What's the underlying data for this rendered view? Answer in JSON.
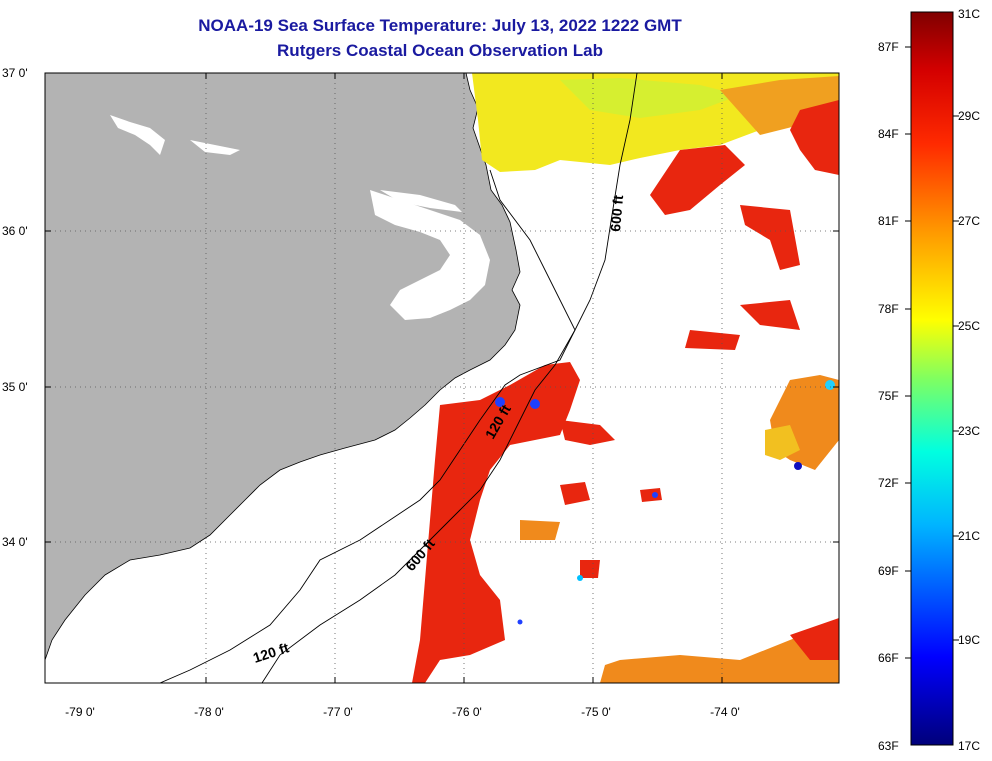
{
  "title": "NOAA-19 Sea Surface Temperature:  July 13, 2022 1222 GMT",
  "subtitle": "Rutgers Coastal Ocean Observation Lab",
  "map": {
    "lat_labels": [
      "37 0'",
      "36 0'",
      "35 0'",
      "34 0'"
    ],
    "lon_labels": [
      "-79 0'",
      "-78 0'",
      "-77 0'",
      "-76 0'",
      "-75 0'",
      "-74 0'"
    ],
    "isobaths": [
      "120 ft",
      "600 ft",
      "600 ft",
      "120 ft"
    ],
    "colors": {
      "land": "#b3b3b3",
      "sea_warm_red": "#e8260f",
      "sea_orange": "#f08a1c",
      "sea_yellow": "#f2e81f"
    }
  },
  "colorbar": {
    "fahrenheit_labels": [
      "87F",
      "84F",
      "81F",
      "78F",
      "75F",
      "72F",
      "69F",
      "66F",
      "63F"
    ],
    "celsius_labels": [
      "31C",
      "29C",
      "27C",
      "25C",
      "23C",
      "21C",
      "19C",
      "17C"
    ]
  }
}
